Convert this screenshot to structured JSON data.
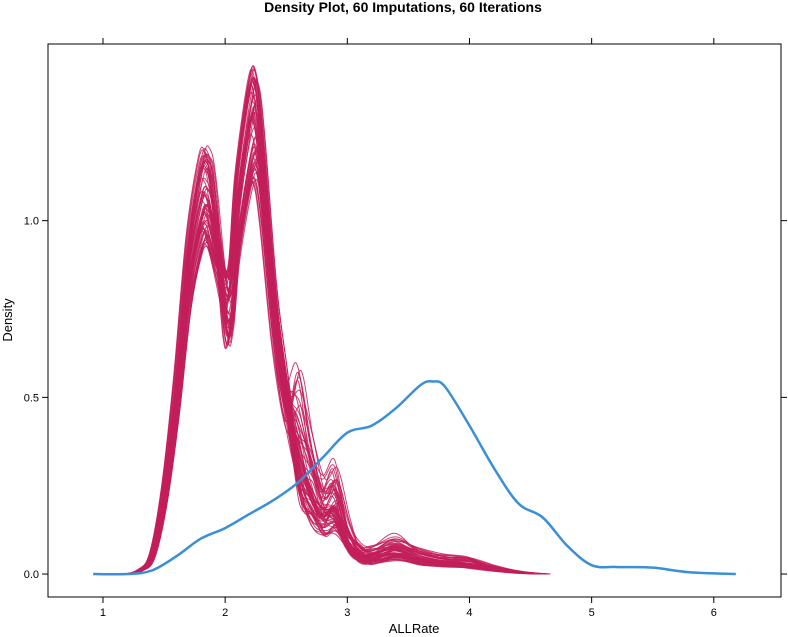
{
  "chart_data": {
    "type": "line",
    "title": "Density Plot, 60 Imputations, 60 Iterations",
    "xlabel": "ALLRate",
    "ylabel": "Density",
    "xlim": [
      0.55,
      6.55
    ],
    "ylim": [
      -0.065,
      1.5
    ],
    "x_ticks": [
      1,
      2,
      3,
      4,
      5,
      6
    ],
    "y_ticks": [
      0.0,
      0.5,
      1.0
    ],
    "y_tick_labels": [
      "0.0",
      "0.5",
      "1.0"
    ],
    "grid": false,
    "legend": "none",
    "colors": {
      "observed": "#3a8fd6",
      "imputed": "#c21f5b"
    },
    "observed_series": {
      "x": [
        0.92,
        1.2,
        1.4,
        1.6,
        1.8,
        2.0,
        2.2,
        2.4,
        2.6,
        2.8,
        3.0,
        3.2,
        3.4,
        3.6,
        3.7,
        3.8,
        4.0,
        4.2,
        4.4,
        4.6,
        4.8,
        5.0,
        5.2,
        5.5,
        5.8,
        6.18
      ],
      "y": [
        0.0,
        0.0,
        0.01,
        0.05,
        0.1,
        0.13,
        0.17,
        0.21,
        0.26,
        0.33,
        0.4,
        0.42,
        0.47,
        0.535,
        0.545,
        0.53,
        0.42,
        0.3,
        0.2,
        0.16,
        0.08,
        0.025,
        0.02,
        0.018,
        0.005,
        0.0
      ]
    },
    "imputed_template": {
      "x": [
        1.2,
        1.3,
        1.4,
        1.5,
        1.6,
        1.7,
        1.8,
        1.85,
        1.9,
        2.0,
        2.05,
        2.1,
        2.2,
        2.25,
        2.3,
        2.4,
        2.5,
        2.6,
        2.7,
        2.8,
        2.9,
        3.0,
        3.1,
        3.2,
        3.4,
        3.6,
        3.8,
        4.0,
        4.2,
        4.4,
        4.6
      ],
      "y": [
        0.0,
        0.01,
        0.05,
        0.22,
        0.5,
        0.85,
        1.05,
        1.07,
        1.0,
        0.78,
        0.8,
        1.02,
        1.25,
        1.28,
        1.15,
        0.75,
        0.5,
        0.37,
        0.25,
        0.18,
        0.2,
        0.1,
        0.06,
        0.05,
        0.07,
        0.045,
        0.035,
        0.03,
        0.015,
        0.005,
        0.0
      ]
    },
    "imputed_count": 60
  }
}
